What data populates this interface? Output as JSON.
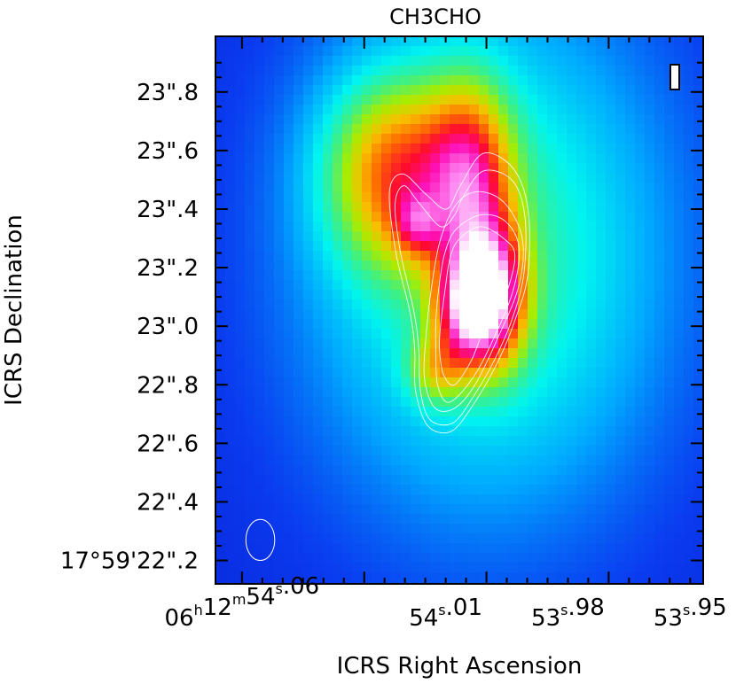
{
  "chart_data": {
    "type": "heatmap",
    "title": "CH3CHO",
    "xlabel": "ICRS Right Ascension",
    "ylabel": "ICRS Declination",
    "x_ticks": [
      {
        "label": [
          [
            "06",
            "h"
          ],
          [
            "12",
            "m"
          ],
          [
            "54",
            "s"
          ],
          [
            ".06",
            ""
          ]
        ],
        "value": 54.06
      },
      {
        "label": [
          [
            "54",
            "s"
          ],
          [
            ".01",
            ""
          ]
        ],
        "value": 54.01
      },
      {
        "label": [
          [
            "53",
            "s"
          ],
          [
            ".98",
            ""
          ]
        ],
        "value": 53.98
      },
      {
        "label": [
          [
            "53",
            "s"
          ],
          [
            ".95",
            ""
          ]
        ],
        "value": 53.95
      }
    ],
    "y_ticks": [
      {
        "label": "17°59'22\".2",
        "value": 22.2
      },
      {
        "label": "22\".4",
        "value": 22.4
      },
      {
        "label": "22\".6",
        "value": 22.6
      },
      {
        "label": "22\".8",
        "value": 22.8
      },
      {
        "label": "23\".0",
        "value": 23.0
      },
      {
        "label": "23\".2",
        "value": 23.2
      },
      {
        "label": "23\".4",
        "value": 23.4
      },
      {
        "label": "23\".6",
        "value": 23.6
      },
      {
        "label": "23\".8",
        "value": 23.8
      }
    ],
    "x_range_seconds": [
      54.0665,
      53.9468
    ],
    "y_range_arcsec": [
      22.12,
      23.99
    ],
    "x_reversed": true,
    "colormap": [
      "#0b00b4",
      "#0a3cf0",
      "#00a8ff",
      "#00f4f0",
      "#40f080",
      "#a8ec00",
      "#f8c000",
      "#ff6a00",
      "#ff0a30",
      "#ff10b8",
      "#ff80f0",
      "#ffffff"
    ],
    "emission_peak": {
      "ra_s": 53.9995,
      "dec_arcsec": 23.1,
      "level": 1.0
    },
    "emission_components": [
      {
        "ra_s": 53.9995,
        "dec_arcsec": 23.1,
        "sigma_ra": 0.006,
        "sigma_dec": 0.16,
        "amp": 0.75
      },
      {
        "ra_s": 54.006,
        "dec_arcsec": 23.05,
        "sigma_ra": 0.005,
        "sigma_dec": 0.12,
        "amp": 0.35
      },
      {
        "ra_s": 54.004,
        "dec_arcsec": 23.5,
        "sigma_ra": 0.007,
        "sigma_dec": 0.22,
        "amp": 0.45
      },
      {
        "ra_s": 54.022,
        "dec_arcsec": 23.52,
        "sigma_ra": 0.012,
        "sigma_dec": 0.22,
        "amp": 0.45
      },
      {
        "ra_s": 54.017,
        "dec_arcsec": 23.35,
        "sigma_ra": 0.004,
        "sigma_dec": 0.07,
        "amp": 0.25
      },
      {
        "ra_s": 54.0,
        "dec_arcsec": 23.25,
        "sigma_ra": 0.03,
        "sigma_dec": 0.6,
        "amp": 0.3
      },
      {
        "ra_s": 54.012,
        "dec_arcsec": 22.85,
        "sigma_ra": 0.005,
        "sigma_dec": 0.08,
        "amp": 0.25
      }
    ],
    "background_level": 0.07,
    "contour_color": "#ffffff",
    "contours": [
      [
        [
          54.0114,
          22.9
        ],
        [
          54.0104,
          22.83
        ],
        [
          54.0078,
          22.8
        ],
        [
          54.0038,
          22.88
        ],
        [
          54.0008,
          22.98
        ],
        [
          53.9955,
          23.1
        ],
        [
          53.993,
          23.24
        ],
        [
          53.9958,
          23.3
        ],
        [
          54.0014,
          23.34
        ],
        [
          54.0065,
          23.3
        ],
        [
          54.0088,
          23.24
        ],
        [
          54.01,
          23.14
        ],
        [
          54.0114,
          22.98
        ]
      ],
      [
        [
          54.0124,
          22.92
        ],
        [
          54.012,
          22.8
        ],
        [
          54.0092,
          22.74
        ],
        [
          54.0035,
          22.82
        ],
        [
          53.9985,
          22.95
        ],
        [
          53.9935,
          23.12
        ],
        [
          53.992,
          23.27
        ],
        [
          53.9955,
          23.36
        ],
        [
          54.0015,
          23.38
        ],
        [
          54.0075,
          23.33
        ],
        [
          54.0102,
          23.25
        ],
        [
          54.0116,
          23.14
        ],
        [
          54.0124,
          23.02
        ]
      ],
      [
        [
          54.0152,
          22.82
        ],
        [
          54.0126,
          22.72
        ],
        [
          54.0078,
          22.72
        ],
        [
          54.0028,
          22.8
        ],
        [
          53.9972,
          22.96
        ],
        [
          53.992,
          23.14
        ],
        [
          53.9912,
          23.3
        ],
        [
          53.9955,
          23.42
        ],
        [
          54.0018,
          23.46
        ],
        [
          54.0072,
          23.42
        ],
        [
          54.0112,
          23.3
        ],
        [
          54.0134,
          23.14
        ],
        [
          54.0148,
          22.97
        ]
      ],
      [
        [
          54.0162,
          22.78
        ],
        [
          54.0138,
          22.68
        ],
        [
          54.0082,
          22.67
        ],
        [
          54.0032,
          22.76
        ],
        [
          53.9982,
          22.88
        ],
        [
          53.9938,
          23.02
        ],
        [
          53.9908,
          23.18
        ],
        [
          53.9906,
          23.38
        ],
        [
          53.9938,
          23.5
        ],
        [
          54.0008,
          23.53
        ],
        [
          54.0058,
          23.44
        ],
        [
          54.0078,
          23.38
        ],
        [
          54.0112,
          23.34
        ],
        [
          54.0165,
          23.42
        ],
        [
          54.0202,
          23.48
        ],
        [
          54.0224,
          23.42
        ],
        [
          54.0212,
          23.26
        ],
        [
          54.0178,
          23.05
        ],
        [
          54.0166,
          22.92
        ]
      ],
      [
        [
          54.0174,
          22.78
        ],
        [
          54.0144,
          22.66
        ],
        [
          54.0088,
          22.64
        ],
        [
          54.0038,
          22.72
        ],
        [
          53.9975,
          22.87
        ],
        [
          53.993,
          23.02
        ],
        [
          53.9898,
          23.18
        ],
        [
          53.9898,
          23.4
        ],
        [
          53.9935,
          23.54
        ],
        [
          54.0008,
          23.59
        ],
        [
          54.0064,
          23.48
        ],
        [
          54.0098,
          23.4
        ],
        [
          54.0148,
          23.45
        ],
        [
          54.0205,
          23.52
        ],
        [
          54.0238,
          23.46
        ],
        [
          54.0222,
          23.25
        ],
        [
          54.0188,
          23.05
        ],
        [
          54.0176,
          22.92
        ]
      ]
    ],
    "beam_ellipse": {
      "ra_s": 54.0555,
      "dec_arcsec": 22.27,
      "major_arcsec": 0.14,
      "minor_arcsec": 0.06,
      "color": "#ffffff"
    },
    "grid": false,
    "legend": "none"
  }
}
